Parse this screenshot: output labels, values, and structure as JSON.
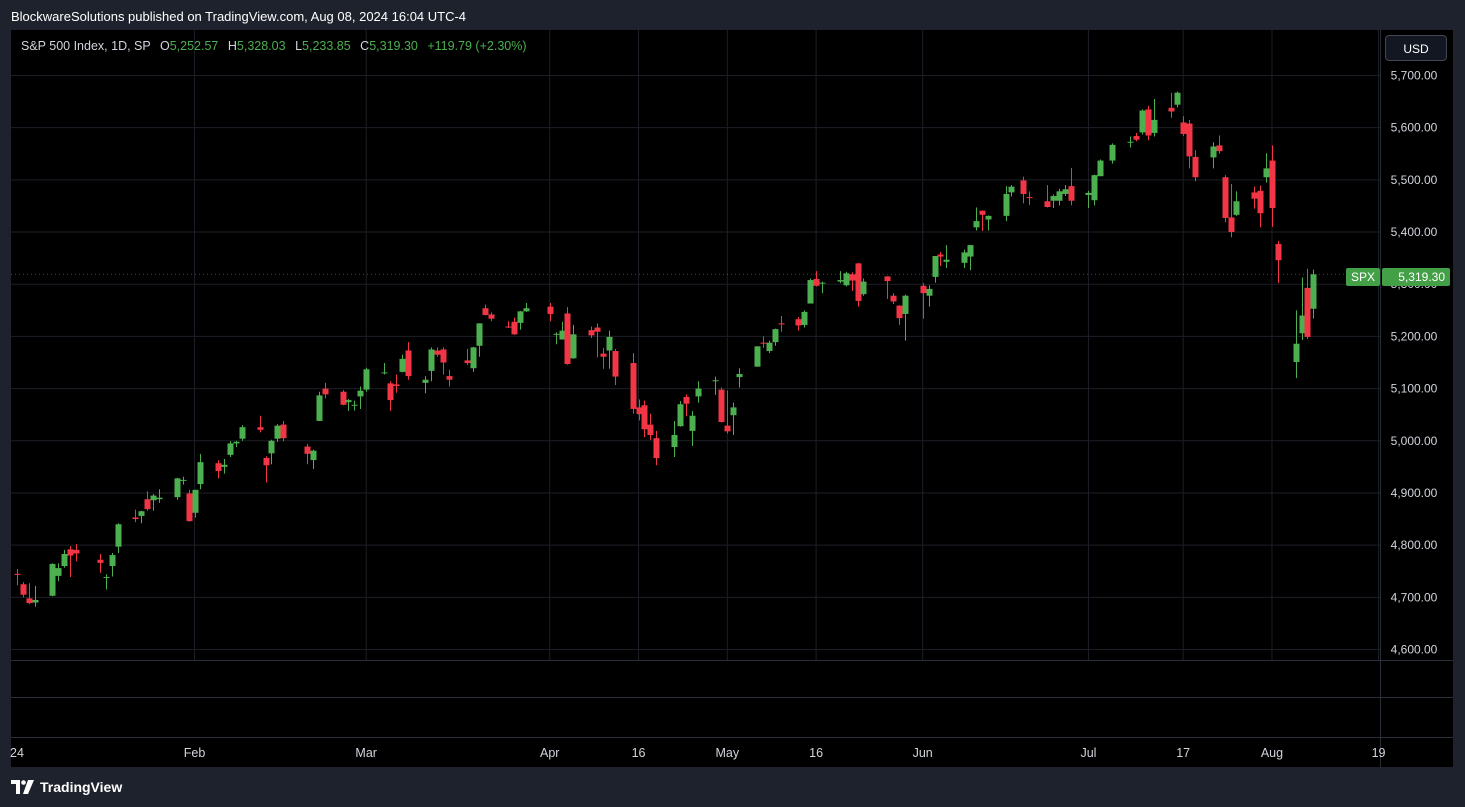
{
  "header": {
    "publisher_line": "BlockwareSolutions published on TradingView.com, Aug 08, 2024 16:04 UTC-4"
  },
  "legend": {
    "symbol": "S&P 500 Index, 1D, SP",
    "o_label": "O",
    "o_value": "5,252.57",
    "h_label": "H",
    "h_value": "5,328.03",
    "l_label": "L",
    "l_value": "5,233.85",
    "c_label": "C",
    "c_value": "5,319.30",
    "change": "+119.79 (+2.30%)"
  },
  "currency_button": "USD",
  "last_price": {
    "symbol": "SPX",
    "value": "5,319.30"
  },
  "footer": {
    "brand": "TradingView"
  },
  "colors": {
    "up": "#4caf50",
    "down": "#f23645",
    "background": "#000000",
    "grid": "#1c1f26"
  },
  "chart_data": {
    "type": "candlestick",
    "interval": "1D",
    "y_axis": {
      "min": 4570,
      "max": 5740,
      "ticks": [
        4600,
        4700,
        4800,
        4900,
        5000,
        5100,
        5200,
        5300,
        5400,
        5500,
        5600,
        5700
      ],
      "tick_labels": [
        "4,600.00",
        "4,700.00",
        "4,800.00",
        "4,900.00",
        "5,000.00",
        "5,100.00",
        "5,200.00",
        "5,300.00",
        "5,400.00",
        "5,500.00",
        "5,600.00",
        "5,700.00"
      ]
    },
    "x_axis_labels": [
      "24",
      "Feb",
      "Mar",
      "Apr",
      "16",
      "May",
      "16",
      "Jun",
      "Jul",
      "17",
      "Aug",
      "19"
    ],
    "x_axis_label_dates": [
      "2024-01-01",
      "2024-02-01",
      "2024-03-01",
      "2024-04-01",
      "2024-04-16",
      "2024-05-01",
      "2024-05-16",
      "2024-06-03",
      "2024-07-01",
      "2024-07-17",
      "2024-08-01",
      "2024-08-19"
    ],
    "grid": true,
    "candles": [
      {
        "d": "2024-01-02",
        "o": 4745,
        "h": 4754,
        "l": 4723,
        "c": 4743
      },
      {
        "d": "2024-01-03",
        "o": 4725,
        "h": 4729,
        "l": 4700,
        "c": 4705
      },
      {
        "d": "2024-01-04",
        "o": 4698,
        "h": 4727,
        "l": 4687,
        "c": 4689
      },
      {
        "d": "2024-01-05",
        "o": 4690,
        "h": 4722,
        "l": 4682,
        "c": 4695
      },
      {
        "d": "2024-01-08",
        "o": 4703,
        "h": 4765,
        "l": 4702,
        "c": 4764
      },
      {
        "d": "2024-01-09",
        "o": 4741,
        "h": 4765,
        "l": 4731,
        "c": 4756
      },
      {
        "d": "2024-01-10",
        "o": 4760,
        "h": 4791,
        "l": 4757,
        "c": 4783
      },
      {
        "d": "2024-01-11",
        "o": 4792,
        "h": 4798,
        "l": 4739,
        "c": 4780
      },
      {
        "d": "2024-01-12",
        "o": 4791,
        "h": 4802,
        "l": 4769,
        "c": 4784
      },
      {
        "d": "2024-01-16",
        "o": 4772,
        "h": 4783,
        "l": 4747,
        "c": 4766
      },
      {
        "d": "2024-01-17",
        "o": 4739,
        "h": 4744,
        "l": 4715,
        "c": 4739
      },
      {
        "d": "2024-01-18",
        "o": 4760,
        "h": 4785,
        "l": 4740,
        "c": 4781
      },
      {
        "d": "2024-01-19",
        "o": 4797,
        "h": 4842,
        "l": 4785,
        "c": 4840
      },
      {
        "d": "2024-01-22",
        "o": 4853,
        "h": 4868,
        "l": 4844,
        "c": 4850
      },
      {
        "d": "2024-01-23",
        "o": 4856,
        "h": 4866,
        "l": 4842,
        "c": 4865
      },
      {
        "d": "2024-01-24",
        "o": 4888,
        "h": 4903,
        "l": 4866,
        "c": 4869
      },
      {
        "d": "2024-01-25",
        "o": 4886,
        "h": 4898,
        "l": 4866,
        "c": 4895
      },
      {
        "d": "2024-01-26",
        "o": 4888,
        "h": 4907,
        "l": 4881,
        "c": 4891
      },
      {
        "d": "2024-01-29",
        "o": 4892,
        "h": 4929,
        "l": 4887,
        "c": 4928
      },
      {
        "d": "2024-01-30",
        "o": 4925,
        "h": 4931,
        "l": 4916,
        "c": 4925
      },
      {
        "d": "2024-01-31",
        "o": 4899,
        "h": 4906,
        "l": 4845,
        "c": 4846
      },
      {
        "d": "2024-02-01",
        "o": 4862,
        "h": 4906,
        "l": 4853,
        "c": 4906
      },
      {
        "d": "2024-02-02",
        "o": 4917,
        "h": 4975,
        "l": 4907,
        "c": 4959
      },
      {
        "d": "2024-02-05",
        "o": 4957,
        "h": 4963,
        "l": 4928,
        "c": 4942
      },
      {
        "d": "2024-02-06",
        "o": 4950,
        "h": 4965,
        "l": 4937,
        "c": 4954
      },
      {
        "d": "2024-02-07",
        "o": 4973,
        "h": 4999,
        "l": 4969,
        "c": 4995
      },
      {
        "d": "2024-02-08",
        "o": 4995,
        "h": 5000,
        "l": 4988,
        "c": 4998
      },
      {
        "d": "2024-02-09",
        "o": 5004,
        "h": 5030,
        "l": 5000,
        "c": 5026
      },
      {
        "d": "2024-02-12",
        "o": 5026,
        "h": 5048,
        "l": 5016,
        "c": 5021
      },
      {
        "d": "2024-02-13",
        "o": 4967,
        "h": 4970,
        "l": 4920,
        "c": 4953
      },
      {
        "d": "2024-02-14",
        "o": 4976,
        "h": 5002,
        "l": 4955,
        "c": 5000
      },
      {
        "d": "2024-02-15",
        "o": 5004,
        "h": 5032,
        "l": 4998,
        "c": 5029
      },
      {
        "d": "2024-02-16",
        "o": 5031,
        "h": 5038,
        "l": 4999,
        "c": 5005
      },
      {
        "d": "2024-02-20",
        "o": 4989,
        "h": 4994,
        "l": 4955,
        "c": 4975
      },
      {
        "d": "2024-02-21",
        "o": 4963,
        "h": 4983,
        "l": 4946,
        "c": 4981
      },
      {
        "d": "2024-02-22",
        "o": 5038,
        "h": 5094,
        "l": 5038,
        "c": 5087
      },
      {
        "d": "2024-02-23",
        "o": 5100,
        "h": 5111,
        "l": 5081,
        "c": 5089
      },
      {
        "d": "2024-02-26",
        "o": 5094,
        "h": 5097,
        "l": 5068,
        "c": 5069
      },
      {
        "d": "2024-02-27",
        "o": 5074,
        "h": 5080,
        "l": 5057,
        "c": 5078
      },
      {
        "d": "2024-02-28",
        "o": 5068,
        "h": 5077,
        "l": 5058,
        "c": 5069
      },
      {
        "d": "2024-02-29",
        "o": 5085,
        "h": 5104,
        "l": 5061,
        "c": 5096
      },
      {
        "d": "2024-03-01",
        "o": 5098,
        "h": 5140,
        "l": 5094,
        "c": 5137
      },
      {
        "d": "2024-03-04",
        "o": 5131,
        "h": 5149,
        "l": 5127,
        "c": 5131
      },
      {
        "d": "2024-03-05",
        "o": 5110,
        "h": 5114,
        "l": 5057,
        "c": 5078
      },
      {
        "d": "2024-03-06",
        "o": 5108,
        "h": 5127,
        "l": 5092,
        "c": 5105
      },
      {
        "d": "2024-03-07",
        "o": 5132,
        "h": 5165,
        "l": 5131,
        "c": 5157
      },
      {
        "d": "2024-03-08",
        "o": 5173,
        "h": 5189,
        "l": 5117,
        "c": 5124
      },
      {
        "d": "2024-03-11",
        "o": 5111,
        "h": 5124,
        "l": 5091,
        "c": 5117
      },
      {
        "d": "2024-03-12",
        "o": 5134,
        "h": 5179,
        "l": 5114,
        "c": 5175
      },
      {
        "d": "2024-03-13",
        "o": 5173,
        "h": 5179,
        "l": 5161,
        "c": 5165
      },
      {
        "d": "2024-03-14",
        "o": 5175,
        "h": 5179,
        "l": 5127,
        "c": 5150
      },
      {
        "d": "2024-03-15",
        "o": 5124,
        "h": 5136,
        "l": 5104,
        "c": 5117
      },
      {
        "d": "2024-03-18",
        "o": 5154,
        "h": 5176,
        "l": 5145,
        "c": 5149
      },
      {
        "d": "2024-03-19",
        "o": 5139,
        "h": 5180,
        "l": 5132,
        "c": 5179
      },
      {
        "d": "2024-03-20",
        "o": 5182,
        "h": 5225,
        "l": 5161,
        "c": 5225
      },
      {
        "d": "2024-03-21",
        "o": 5254,
        "h": 5261,
        "l": 5240,
        "c": 5241
      },
      {
        "d": "2024-03-22",
        "o": 5242,
        "h": 5246,
        "l": 5229,
        "c": 5234
      },
      {
        "d": "2024-03-25",
        "o": 5219,
        "h": 5229,
        "l": 5216,
        "c": 5218
      },
      {
        "d": "2024-03-26",
        "o": 5228,
        "h": 5236,
        "l": 5203,
        "c": 5204
      },
      {
        "d": "2024-03-27",
        "o": 5226,
        "h": 5249,
        "l": 5213,
        "c": 5248
      },
      {
        "d": "2024-03-28",
        "o": 5248,
        "h": 5264,
        "l": 5247,
        "c": 5254
      },
      {
        "d": "2024-04-01",
        "o": 5257,
        "h": 5264,
        "l": 5229,
        "c": 5243
      },
      {
        "d": "2024-04-02",
        "o": 5204,
        "h": 5208,
        "l": 5185,
        "c": 5205
      },
      {
        "d": "2024-04-03",
        "o": 5194,
        "h": 5228,
        "l": 5194,
        "c": 5211
      },
      {
        "d": "2024-04-04",
        "o": 5244,
        "h": 5256,
        "l": 5146,
        "c": 5147
      },
      {
        "d": "2024-04-05",
        "o": 5158,
        "h": 5222,
        "l": 5157,
        "c": 5204
      },
      {
        "d": "2024-04-08",
        "o": 5212,
        "h": 5219,
        "l": 5197,
        "c": 5202
      },
      {
        "d": "2024-04-09",
        "o": 5217,
        "h": 5225,
        "l": 5160,
        "c": 5209
      },
      {
        "d": "2024-04-10",
        "o": 5167,
        "h": 5178,
        "l": 5138,
        "c": 5161
      },
      {
        "d": "2024-04-11",
        "o": 5173,
        "h": 5211,
        "l": 5138,
        "c": 5199
      },
      {
        "d": "2024-04-12",
        "o": 5172,
        "h": 5176,
        "l": 5107,
        "c": 5123
      },
      {
        "d": "2024-04-15",
        "o": 5149,
        "h": 5168,
        "l": 5052,
        "c": 5061
      },
      {
        "d": "2024-04-16",
        "o": 5064,
        "h": 5079,
        "l": 5039,
        "c": 5051
      },
      {
        "d": "2024-04-17",
        "o": 5068,
        "h": 5077,
        "l": 5007,
        "c": 5022
      },
      {
        "d": "2024-04-18",
        "o": 5031,
        "h": 5052,
        "l": 5002,
        "c": 5011
      },
      {
        "d": "2024-04-19",
        "o": 5005,
        "h": 5019,
        "l": 4953,
        "c": 4967
      },
      {
        "d": "2024-04-22",
        "o": 4988,
        "h": 5038,
        "l": 4969,
        "c": 5011
      },
      {
        "d": "2024-04-23",
        "o": 5028,
        "h": 5076,
        "l": 5027,
        "c": 5070
      },
      {
        "d": "2024-04-24",
        "o": 5084,
        "h": 5089,
        "l": 5047,
        "c": 5071
      },
      {
        "d": "2024-04-25",
        "o": 5019,
        "h": 5057,
        "l": 4990,
        "c": 5048
      },
      {
        "d": "2024-04-26",
        "o": 5085,
        "h": 5114,
        "l": 5073,
        "c": 5100
      },
      {
        "d": "2024-04-29",
        "o": 5114,
        "h": 5123,
        "l": 5088,
        "c": 5116
      },
      {
        "d": "2024-04-30",
        "o": 5098,
        "h": 5102,
        "l": 5035,
        "c": 5036
      },
      {
        "d": "2024-05-01",
        "o": 5029,
        "h": 5096,
        "l": 5014,
        "c": 5018
      },
      {
        "d": "2024-05-02",
        "o": 5049,
        "h": 5073,
        "l": 5011,
        "c": 5064
      },
      {
        "d": "2024-05-03",
        "o": 5122,
        "h": 5139,
        "l": 5102,
        "c": 5128
      },
      {
        "d": "2024-05-06",
        "o": 5142,
        "h": 5181,
        "l": 5142,
        "c": 5181
      },
      {
        "d": "2024-05-07",
        "o": 5188,
        "h": 5200,
        "l": 5178,
        "c": 5187
      },
      {
        "d": "2024-05-08",
        "o": 5172,
        "h": 5192,
        "l": 5168,
        "c": 5188
      },
      {
        "d": "2024-05-09",
        "o": 5189,
        "h": 5215,
        "l": 5182,
        "c": 5214
      },
      {
        "d": "2024-05-10",
        "o": 5225,
        "h": 5239,
        "l": 5209,
        "c": 5223
      },
      {
        "d": "2024-05-13",
        "o": 5233,
        "h": 5237,
        "l": 5211,
        "c": 5221
      },
      {
        "d": "2024-05-14",
        "o": 5222,
        "h": 5250,
        "l": 5217,
        "c": 5247
      },
      {
        "d": "2024-05-15",
        "o": 5263,
        "h": 5311,
        "l": 5263,
        "c": 5308
      },
      {
        "d": "2024-05-16",
        "o": 5310,
        "h": 5325,
        "l": 5296,
        "c": 5297
      },
      {
        "d": "2024-05-17",
        "o": 5303,
        "h": 5305,
        "l": 5283,
        "c": 5303
      },
      {
        "d": "2024-05-20",
        "o": 5305,
        "h": 5325,
        "l": 5302,
        "c": 5308
      },
      {
        "d": "2024-05-21",
        "o": 5298,
        "h": 5324,
        "l": 5296,
        "c": 5321
      },
      {
        "d": "2024-05-22",
        "o": 5319,
        "h": 5323,
        "l": 5287,
        "c": 5307
      },
      {
        "d": "2024-05-23",
        "o": 5340,
        "h": 5341,
        "l": 5257,
        "c": 5268
      },
      {
        "d": "2024-05-24",
        "o": 5281,
        "h": 5311,
        "l": 5278,
        "c": 5305
      },
      {
        "d": "2024-05-28",
        "o": 5315,
        "h": 5315,
        "l": 5272,
        "c": 5306
      },
      {
        "d": "2024-05-29",
        "o": 5278,
        "h": 5283,
        "l": 5262,
        "c": 5267
      },
      {
        "d": "2024-05-30",
        "o": 5259,
        "h": 5260,
        "l": 5222,
        "c": 5235
      },
      {
        "d": "2024-05-31",
        "o": 5243,
        "h": 5280,
        "l": 5192,
        "c": 5278
      },
      {
        "d": "2024-06-03",
        "o": 5297,
        "h": 5302,
        "l": 5234,
        "c": 5283
      },
      {
        "d": "2024-06-04",
        "o": 5278,
        "h": 5298,
        "l": 5257,
        "c": 5291
      },
      {
        "d": "2024-06-05",
        "o": 5314,
        "h": 5354,
        "l": 5303,
        "c": 5354
      },
      {
        "d": "2024-06-06",
        "o": 5357,
        "h": 5362,
        "l": 5335,
        "c": 5353
      },
      {
        "d": "2024-06-07",
        "o": 5343,
        "h": 5375,
        "l": 5331,
        "c": 5347
      },
      {
        "d": "2024-06-10",
        "o": 5341,
        "h": 5366,
        "l": 5331,
        "c": 5361
      },
      {
        "d": "2024-06-11",
        "o": 5353,
        "h": 5375,
        "l": 5327,
        "c": 5375
      },
      {
        "d": "2024-06-12",
        "o": 5409,
        "h": 5447,
        "l": 5403,
        "c": 5421
      },
      {
        "d": "2024-06-13",
        "o": 5441,
        "h": 5441,
        "l": 5402,
        "c": 5433
      },
      {
        "d": "2024-06-14",
        "o": 5424,
        "h": 5432,
        "l": 5403,
        "c": 5431
      },
      {
        "d": "2024-06-17",
        "o": 5431,
        "h": 5488,
        "l": 5421,
        "c": 5473
      },
      {
        "d": "2024-06-18",
        "o": 5476,
        "h": 5490,
        "l": 5468,
        "c": 5487
      },
      {
        "d": "2024-06-20",
        "o": 5499,
        "h": 5506,
        "l": 5455,
        "c": 5473
      },
      {
        "d": "2024-06-21",
        "o": 5467,
        "h": 5478,
        "l": 5452,
        "c": 5465
      },
      {
        "d": "2024-06-24",
        "o": 5459,
        "h": 5490,
        "l": 5447,
        "c": 5448
      },
      {
        "d": "2024-06-25",
        "o": 5460,
        "h": 5472,
        "l": 5446,
        "c": 5469
      },
      {
        "d": "2024-06-26",
        "o": 5460,
        "h": 5483,
        "l": 5451,
        "c": 5478
      },
      {
        "d": "2024-06-27",
        "o": 5473,
        "h": 5490,
        "l": 5469,
        "c": 5482
      },
      {
        "d": "2024-06-28",
        "o": 5488,
        "h": 5523,
        "l": 5451,
        "c": 5460
      },
      {
        "d": "2024-07-01",
        "o": 5471,
        "h": 5479,
        "l": 5446,
        "c": 5475
      },
      {
        "d": "2024-07-02",
        "o": 5461,
        "h": 5510,
        "l": 5451,
        "c": 5509
      },
      {
        "d": "2024-07-03",
        "o": 5507,
        "h": 5539,
        "l": 5507,
        "c": 5537
      },
      {
        "d": "2024-07-05",
        "o": 5537,
        "h": 5570,
        "l": 5531,
        "c": 5567
      },
      {
        "d": "2024-07-08",
        "o": 5572,
        "h": 5583,
        "l": 5562,
        "c": 5573
      },
      {
        "d": "2024-07-09",
        "o": 5584,
        "h": 5590,
        "l": 5574,
        "c": 5577
      },
      {
        "d": "2024-07-10",
        "o": 5591,
        "h": 5635,
        "l": 5587,
        "c": 5633
      },
      {
        "d": "2024-07-11",
        "o": 5635,
        "h": 5642,
        "l": 5576,
        "c": 5585
      },
      {
        "d": "2024-07-12",
        "o": 5590,
        "h": 5655,
        "l": 5583,
        "c": 5615
      },
      {
        "d": "2024-07-15",
        "o": 5638,
        "h": 5667,
        "l": 5619,
        "c": 5631
      },
      {
        "d": "2024-07-16",
        "o": 5644,
        "h": 5669,
        "l": 5639,
        "c": 5667
      },
      {
        "d": "2024-07-17",
        "o": 5610,
        "h": 5622,
        "l": 5584,
        "c": 5588
      },
      {
        "d": "2024-07-18",
        "o": 5608,
        "h": 5615,
        "l": 5522,
        "c": 5545
      },
      {
        "d": "2024-07-19",
        "o": 5544,
        "h": 5557,
        "l": 5497,
        "c": 5505
      },
      {
        "d": "2024-07-22",
        "o": 5543,
        "h": 5572,
        "l": 5522,
        "c": 5564
      },
      {
        "d": "2024-07-23",
        "o": 5566,
        "h": 5585,
        "l": 5550,
        "c": 5555
      },
      {
        "d": "2024-07-24",
        "o": 5505,
        "h": 5509,
        "l": 5419,
        "c": 5427
      },
      {
        "d": "2024-07-25",
        "o": 5428,
        "h": 5492,
        "l": 5390,
        "c": 5400
      },
      {
        "d": "2024-07-26",
        "o": 5433,
        "h": 5478,
        "l": 5431,
        "c": 5459
      },
      {
        "d": "2024-07-29",
        "o": 5476,
        "h": 5487,
        "l": 5445,
        "c": 5464
      },
      {
        "d": "2024-07-30",
        "o": 5479,
        "h": 5489,
        "l": 5409,
        "c": 5436
      },
      {
        "d": "2024-07-31",
        "o": 5505,
        "h": 5551,
        "l": 5495,
        "c": 5522
      },
      {
        "d": "2024-08-01",
        "o": 5537,
        "h": 5566,
        "l": 5410,
        "c": 5446
      },
      {
        "d": "2024-08-02",
        "o": 5377,
        "h": 5383,
        "l": 5302,
        "c": 5346
      },
      {
        "d": "2024-08-05",
        "o": 5151,
        "h": 5250,
        "l": 5120,
        "c": 5186
      },
      {
        "d": "2024-08-06",
        "o": 5206,
        "h": 5313,
        "l": 5193,
        "c": 5240
      },
      {
        "d": "2024-08-07",
        "o": 5293,
        "h": 5330,
        "l": 5195,
        "c": 5199
      },
      {
        "d": "2024-08-08",
        "o": 5253,
        "h": 5328,
        "l": 5234,
        "c": 5319
      }
    ]
  }
}
